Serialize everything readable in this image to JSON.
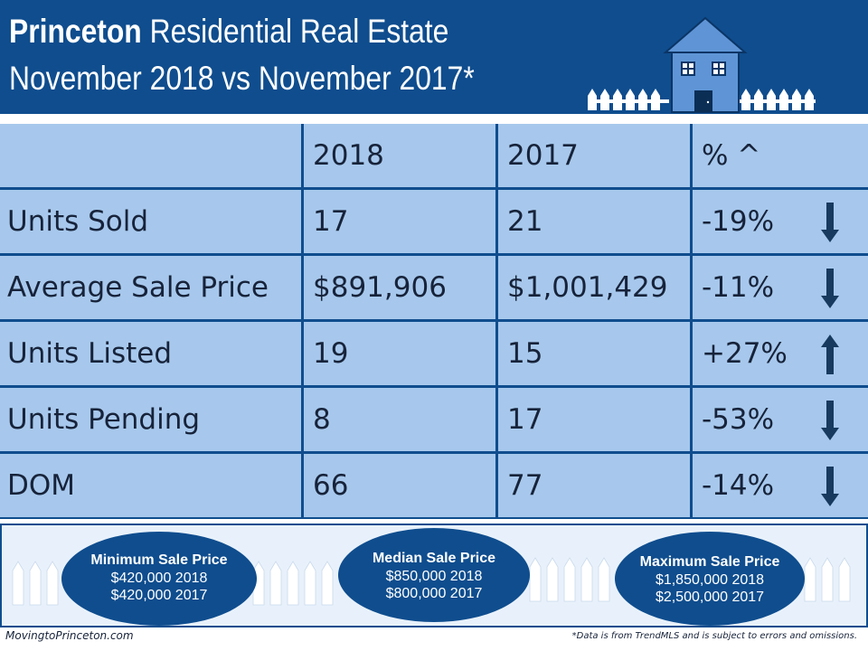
{
  "header": {
    "title_bold": "Princeton",
    "title_rest": " Residential Real Estate",
    "subtitle": "November 2018 vs November 2017*"
  },
  "table": {
    "columns": [
      "",
      "2018",
      "2017",
      "% ^"
    ],
    "rows": [
      {
        "label": "Units Sold",
        "y2018": "17",
        "y2017": "21",
        "pct": "-19%",
        "direction": "down"
      },
      {
        "label": "Average Sale Price",
        "y2018": "$891,906",
        "y2017": "$1,001,429",
        "pct": "-11%",
        "direction": "down"
      },
      {
        "label": "Units Listed",
        "y2018": "19",
        "y2017": "15",
        "pct": "+27%",
        "direction": "up"
      },
      {
        "label": "Units Pending",
        "y2018": "8",
        "y2017": "17",
        "pct": "-53%",
        "direction": "down"
      },
      {
        "label": "DOM",
        "y2018": "66",
        "y2017": "77",
        "pct": "-14%",
        "direction": "down"
      }
    ]
  },
  "summary": [
    {
      "title": "Minimum Sale Price",
      "line1": "$420,000 2018",
      "line2": "$420,000 2017"
    },
    {
      "title": "Median Sale Price",
      "line1": "$850,000  2018",
      "line2": "$800,000 2017"
    },
    {
      "title": "Maximum Sale Price",
      "line1": "$1,850,000  2018",
      "line2": "$2,500,000 2017"
    }
  ],
  "footer": {
    "site": "MovingtoPrinceton.com",
    "disclaimer": "*Data is from TrendMLS and is subject to errors and omissions."
  },
  "colors": {
    "navy": "#0f4d8e",
    "cell": "#a7c8ec",
    "house": "#5f95d6",
    "arrow": "#173a5e"
  },
  "icons": [
    "house-icon",
    "picket-fence-icon",
    "arrow-down-icon",
    "arrow-up-icon"
  ]
}
